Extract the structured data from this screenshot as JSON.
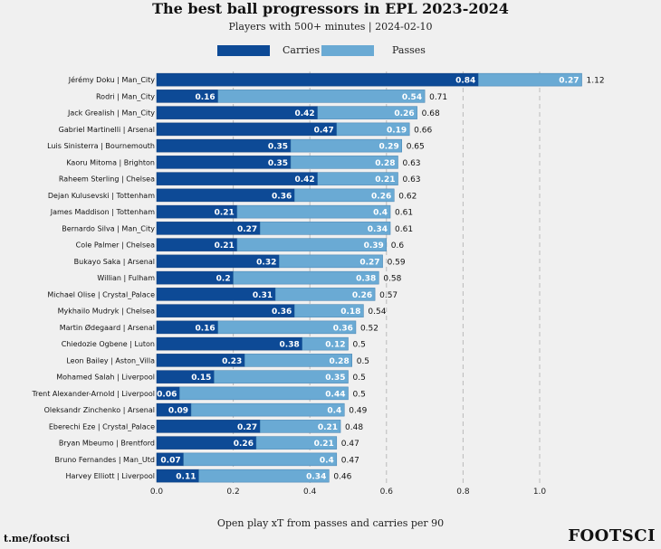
{
  "title": "The best ball progressors in EPL 2023-2024",
  "subtitle": "Players with 500+ minutes | 2024-02-10",
  "footer_left": "t.me/footsci",
  "footer_right": "FOOTSCI",
  "colors": {
    "carries": "#0d4a96",
    "passes": "#6aaad4",
    "grid": "#bbbbbb"
  },
  "chart_data": {
    "type": "bar",
    "orientation": "horizontal",
    "stacked": true,
    "title": "The best ball progressors in EPL 2023-2024",
    "xlabel": "Open play xT from passes and carries per 90",
    "ylabel": "",
    "xlim": [
      0,
      1.2
    ],
    "xticks": [
      "0.0",
      "0.2",
      "0.4",
      "0.6",
      "0.8",
      "1.0"
    ],
    "grid": "x-dashed",
    "legend_position": "top",
    "categories": [
      "Jérémy Doku | Man_City",
      "Rodri | Man_City",
      "Jack Grealish | Man_City",
      "Gabriel Martinelli | Arsenal",
      "Luis Sinisterra | Bournemouth",
      "Kaoru Mitoma | Brighton",
      "Raheem Sterling | Chelsea",
      "Dejan Kulusevski | Tottenham",
      "James Maddison | Tottenham",
      "Bernardo Silva | Man_City",
      "Cole Palmer | Chelsea",
      "Bukayo Saka | Arsenal",
      "Willian | Fulham",
      "Michael Olise | Crystal_Palace",
      "Mykhailo Mudryk | Chelsea",
      "Martin Ødegaard | Arsenal",
      "Chiedozie Ogbene | Luton",
      "Leon Bailey | Aston_Villa",
      "Mohamed Salah | Liverpool",
      "Trent Alexander-Arnold | Liverpool",
      "Oleksandr Zinchenko | Arsenal",
      "Eberechi Eze | Crystal_Palace",
      "Bryan Mbeumo | Brentford",
      "Bruno Fernandes | Man_Utd",
      "Harvey Elliott | Liverpool"
    ],
    "series": [
      {
        "name": "Carries",
        "values": [
          0.84,
          0.16,
          0.42,
          0.47,
          0.35,
          0.35,
          0.42,
          0.36,
          0.21,
          0.27,
          0.21,
          0.32,
          0.2,
          0.31,
          0.36,
          0.16,
          0.38,
          0.23,
          0.15,
          0.06,
          0.09,
          0.27,
          0.26,
          0.07,
          0.11
        ]
      },
      {
        "name": "Passes",
        "values": [
          0.27,
          0.54,
          0.26,
          0.19,
          0.29,
          0.28,
          0.21,
          0.26,
          0.4,
          0.34,
          0.39,
          0.27,
          0.38,
          0.26,
          0.18,
          0.36,
          0.12,
          0.28,
          0.35,
          0.44,
          0.4,
          0.21,
          0.21,
          0.4,
          0.34
        ]
      }
    ],
    "totals": [
      "1.12",
      "0.71",
      "0.68",
      "0.66",
      "0.65",
      "0.63",
      "0.63",
      "0.62",
      "0.61",
      "0.61",
      "0.6",
      "0.59",
      "0.58",
      "0.57",
      "0.54",
      "0.52",
      "0.5",
      "0.5",
      "0.5",
      "0.5",
      "0.49",
      "0.48",
      "0.47",
      "0.47",
      "0.46"
    ]
  }
}
